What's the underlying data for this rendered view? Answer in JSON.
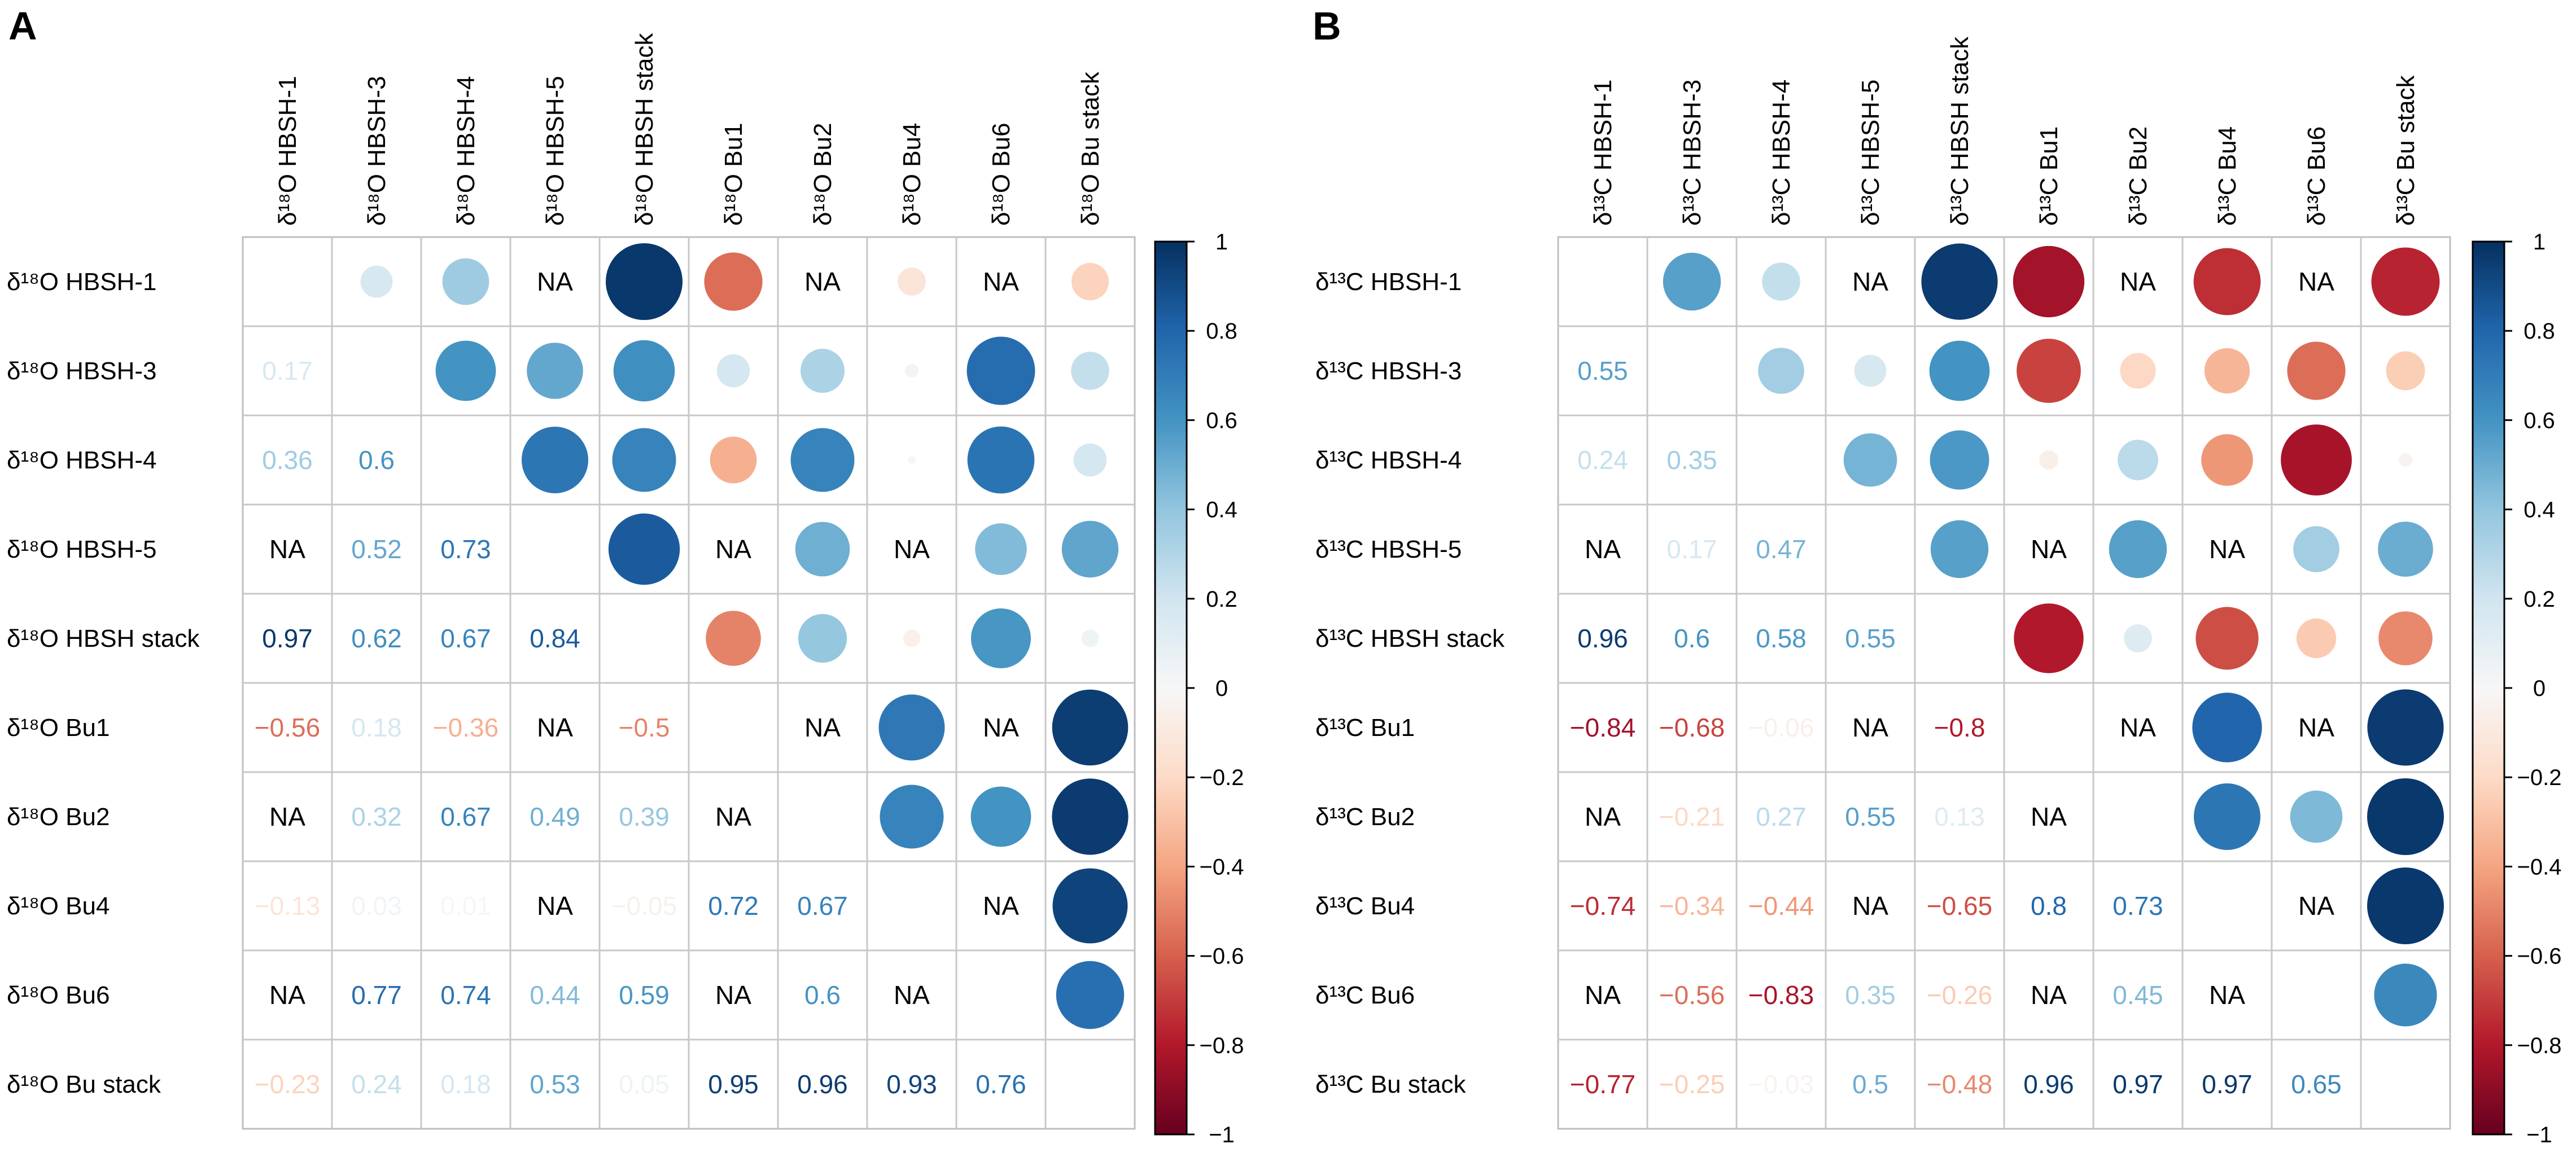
{
  "chart_data": [
    {
      "type": "heatmap",
      "panel_label": "A",
      "title": "",
      "labels": [
        "δ¹⁸O HBSH-1",
        "δ¹⁸O HBSH-3",
        "δ¹⁸O HBSH-4",
        "δ¹⁸O HBSH-5",
        "δ¹⁸O HBSH stack",
        "δ¹⁸O Bu1",
        "δ¹⁸O Bu2",
        "δ¹⁸O Bu4",
        "δ¹⁸O Bu6",
        "δ¹⁸O Bu stack"
      ],
      "matrix": [
        [
          null,
          0.17,
          0.36,
          "NA",
          0.97,
          -0.56,
          "NA",
          -0.13,
          "NA",
          -0.23
        ],
        [
          0.17,
          null,
          0.6,
          0.52,
          0.62,
          0.18,
          0.32,
          0.03,
          0.77,
          0.24
        ],
        [
          0.36,
          0.6,
          null,
          0.73,
          0.67,
          -0.36,
          0.67,
          0.01,
          0.74,
          0.18
        ],
        [
          "NA",
          0.52,
          0.73,
          null,
          0.84,
          "NA",
          0.49,
          "NA",
          0.44,
          0.53
        ],
        [
          0.97,
          0.62,
          0.67,
          0.84,
          null,
          -0.5,
          0.39,
          -0.05,
          0.59,
          0.05
        ],
        [
          -0.56,
          0.18,
          -0.36,
          "NA",
          -0.5,
          null,
          "NA",
          0.72,
          "NA",
          0.95
        ],
        [
          "NA",
          0.32,
          0.67,
          0.49,
          0.39,
          "NA",
          null,
          0.67,
          0.6,
          0.96
        ],
        [
          -0.13,
          0.03,
          0.01,
          "NA",
          -0.05,
          0.72,
          0.67,
          null,
          "NA",
          0.93
        ],
        [
          "NA",
          0.77,
          0.74,
          0.44,
          0.59,
          "NA",
          0.6,
          "NA",
          null,
          0.76
        ],
        [
          -0.23,
          0.24,
          0.18,
          0.53,
          0.05,
          0.95,
          0.96,
          0.93,
          0.76,
          null
        ]
      ],
      "colorbar_ticks": [
        "1",
        "0.8",
        "0.6",
        "0.4",
        "0.2",
        "0",
        "−0.2",
        "−0.4",
        "−0.6",
        "−0.8",
        "−1"
      ],
      "colorbar_range": [
        -1,
        1
      ],
      "lower_triangle": "numbers",
      "upper_triangle": "circles",
      "na_label": "NA"
    },
    {
      "type": "heatmap",
      "panel_label": "B",
      "title": "",
      "labels": [
        "δ¹³C HBSH-1",
        "δ¹³C HBSH-3",
        "δ¹³C HBSH-4",
        "δ¹³C HBSH-5",
        "δ¹³C HBSH stack",
        "δ¹³C Bu1",
        "δ¹³C Bu2",
        "δ¹³C Bu4",
        "δ¹³C Bu6",
        "δ¹³C Bu stack"
      ],
      "matrix": [
        [
          null,
          0.55,
          0.24,
          "NA",
          0.96,
          -0.84,
          "NA",
          -0.74,
          "NA",
          -0.77
        ],
        [
          0.55,
          null,
          0.35,
          0.17,
          0.6,
          -0.68,
          -0.21,
          -0.34,
          -0.56,
          -0.25
        ],
        [
          0.24,
          0.35,
          null,
          0.47,
          0.58,
          -0.06,
          0.27,
          -0.44,
          -0.83,
          -0.03
        ],
        [
          "NA",
          0.17,
          0.47,
          null,
          0.55,
          "NA",
          0.55,
          "NA",
          0.35,
          0.5
        ],
        [
          0.96,
          0.6,
          0.58,
          0.55,
          null,
          -0.8,
          0.13,
          -0.65,
          -0.26,
          -0.48
        ],
        [
          -0.84,
          -0.68,
          -0.06,
          "NA",
          -0.8,
          null,
          "NA",
          0.8,
          "NA",
          0.96
        ],
        [
          "NA",
          -0.21,
          0.27,
          0.55,
          0.13,
          "NA",
          null,
          0.73,
          0.45,
          0.97
        ],
        [
          -0.74,
          -0.34,
          -0.44,
          "NA",
          -0.65,
          0.8,
          0.73,
          null,
          "NA",
          0.97
        ],
        [
          "NA",
          -0.56,
          -0.83,
          0.35,
          -0.26,
          "NA",
          0.45,
          "NA",
          null,
          0.65
        ],
        [
          -0.77,
          -0.25,
          -0.03,
          0.5,
          -0.48,
          0.96,
          0.97,
          0.97,
          0.65,
          null
        ]
      ],
      "colorbar_ticks": [
        "1",
        "0.8",
        "0.6",
        "0.4",
        "0.2",
        "0",
        "−0.2",
        "−0.4",
        "−0.6",
        "−0.8",
        "−1"
      ],
      "colorbar_range": [
        -1,
        1
      ],
      "lower_triangle": "numbers",
      "upper_triangle": "circles",
      "na_label": "NA"
    }
  ]
}
